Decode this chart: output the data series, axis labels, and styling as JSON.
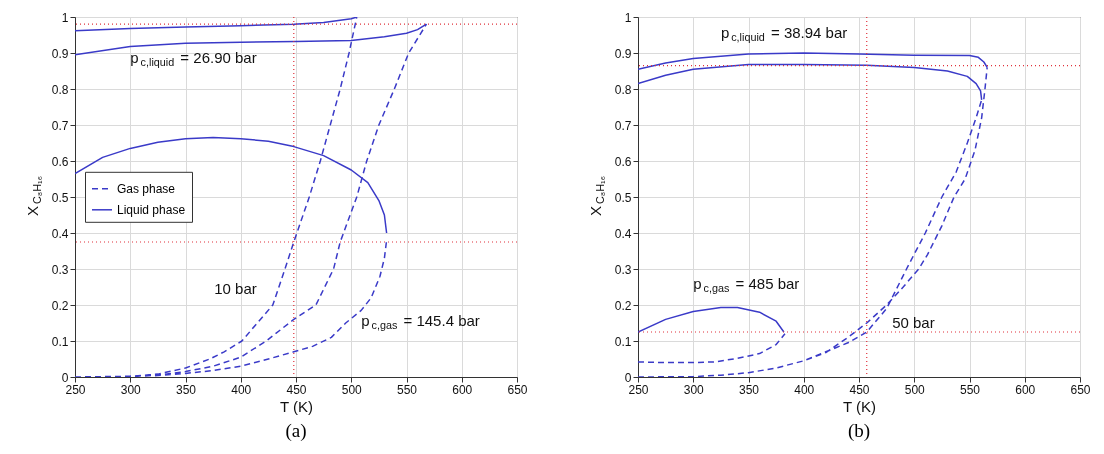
{
  "chart_data": [
    {
      "type": "line",
      "title": "(a)",
      "xlabel": "T (K)",
      "ylabel": "X$_{C₈H₁₆}$",
      "xlim": [
        250,
        650
      ],
      "xticks": [
        250,
        300,
        350,
        400,
        450,
        500,
        550,
        600,
        650
      ],
      "ylim": [
        0,
        1
      ],
      "yticks": [
        0,
        0.1,
        0.2,
        0.3,
        0.4,
        0.5,
        0.6,
        0.7,
        0.8,
        0.9,
        1
      ],
      "grid": true,
      "legend": "left",
      "series": [
        {
          "name": "Gas phase",
          "color": "#3a3ac8",
          "line_style": "dashed",
          "x": [
            250,
            300,
            325,
            350,
            372,
            385,
            401,
            415,
            429,
            440,
            448,
            462,
            472,
            481,
            490,
            498,
            505,
            null,
            250,
            300,
            325,
            350,
            375,
            400,
            423,
            448,
            468,
            484,
            490,
            505,
            514,
            525,
            539,
            552,
            568,
            null,
            250,
            300,
            325,
            350,
            375,
            400,
            425,
            448,
            465,
            482,
            495,
            509,
            518,
            526,
            530,
            532
          ],
          "values": [
            0,
            0.002,
            0.008,
            0.025,
            0.05,
            0.07,
            0.1,
            0.15,
            0.2,
            0.3,
            0.375,
            0.5,
            0.6,
            0.7,
            0.8,
            0.9,
            1.0,
            null,
            0,
            0.001,
            0.005,
            0.015,
            0.03,
            0.055,
            0.1,
            0.16,
            0.2,
            0.3,
            0.375,
            0.5,
            0.6,
            0.7,
            0.8,
            0.9,
            0.98,
            null,
            0,
            0.001,
            0.004,
            0.01,
            0.018,
            0.03,
            0.05,
            0.07,
            0.085,
            0.11,
            0.15,
            0.185,
            0.22,
            0.28,
            0.33,
            0.38
          ]
        },
        {
          "name": "Liquid phase",
          "color": "#3a3ac8",
          "line_style": "solid",
          "x": [
            250,
            300,
            350,
            400,
            448,
            475,
            500,
            505,
            null,
            250,
            300,
            350,
            400,
            450,
            500,
            530,
            550,
            560,
            568,
            null,
            250,
            275,
            300,
            325,
            350,
            375,
            400,
            425,
            448,
            475,
            500,
            515,
            525,
            530,
            532
          ],
          "values": [
            0.962,
            0.968,
            0.972,
            0.976,
            0.98,
            0.985,
            0.995,
            1.0,
            null,
            0.895,
            0.918,
            0.927,
            0.93,
            0.932,
            0.935,
            0.945,
            0.955,
            0.965,
            0.98,
            null,
            0.565,
            0.61,
            0.635,
            0.652,
            0.662,
            0.665,
            0.662,
            0.655,
            0.64,
            0.615,
            0.575,
            0.54,
            0.49,
            0.45,
            0.4
          ]
        }
      ],
      "ref_lines": [
        {
          "axis": "x",
          "value": 448,
          "color": "#e0303a",
          "line_style": "dotted"
        },
        {
          "axis": "y",
          "value": 0.98,
          "color": "#e0303a",
          "line_style": "dotted"
        },
        {
          "axis": "y",
          "value": 0.375,
          "color": "#e0303a",
          "line_style": "dotted"
        }
      ],
      "annotations": [
        "p$_{c,liquid}$ = 26.90 bar",
        "10 bar",
        "p$_{c,gas}$ = 145.4 bar"
      ]
    },
    {
      "type": "line",
      "title": "(b)",
      "xlabel": "T (K)",
      "ylabel": "X$_{C₈H₁₆}$",
      "xlim": [
        250,
        650
      ],
      "xticks": [
        250,
        300,
        350,
        400,
        450,
        500,
        550,
        600,
        650
      ],
      "ylim": [
        0,
        1
      ],
      "yticks": [
        0,
        0.1,
        0.2,
        0.3,
        0.4,
        0.5,
        0.6,
        0.7,
        0.8,
        0.9,
        1
      ],
      "grid": true,
      "legend": "left",
      "series": [
        {
          "name": "Gas phase",
          "color": "#3a3ac8",
          "line_style": "dashed",
          "x": [
            250,
            275,
            300,
            320,
            340,
            360,
            375,
            383,
            null,
            250,
            300,
            325,
            350,
            375,
            400,
            420,
            440,
            457,
            475,
            493,
            510,
            525,
            538,
            548,
            556,
            561,
            null,
            250,
            300,
            325,
            350,
            375,
            400,
            420,
            440,
            457,
            475,
            490,
            504,
            512,
            525,
            536,
            546,
            555,
            561,
            564,
            566
          ],
          "values": [
            0.042,
            0.04,
            0.04,
            0.042,
            0.052,
            0.065,
            0.09,
            0.12,
            null,
            0,
            0.001,
            0.005,
            0.012,
            0.025,
            0.045,
            0.07,
            0.095,
            0.125,
            0.19,
            0.3,
            0.4,
            0.5,
            0.57,
            0.65,
            0.72,
            0.77,
            null,
            0,
            0.001,
            0.005,
            0.012,
            0.025,
            0.045,
            0.068,
            0.11,
            0.15,
            0.2,
            0.25,
            0.3,
            0.34,
            0.42,
            0.5,
            0.55,
            0.63,
            0.72,
            0.8,
            0.86
          ]
        },
        {
          "name": "Liquid phase",
          "color": "#3a3ac8",
          "line_style": "solid",
          "x": [
            250,
            275,
            300,
            325,
            340,
            360,
            375,
            382,
            null,
            250,
            275,
            300,
            350,
            400,
            450,
            500,
            550,
            558,
            563,
            566,
            null,
            250,
            275,
            300,
            350,
            400,
            457,
            500,
            530,
            548,
            556,
            560,
            561
          ],
          "values": [
            0.125,
            0.16,
            0.182,
            0.193,
            0.193,
            0.18,
            0.155,
            0.125,
            null,
            0.855,
            0.872,
            0.885,
            0.897,
            0.9,
            0.897,
            0.894,
            0.893,
            0.888,
            0.875,
            0.86,
            null,
            0.815,
            0.838,
            0.855,
            0.868,
            0.868,
            0.866,
            0.86,
            0.85,
            0.835,
            0.815,
            0.795,
            0.77
          ]
        }
      ],
      "ref_lines": [
        {
          "axis": "x",
          "value": 457,
          "color": "#e0303a",
          "line_style": "dotted"
        },
        {
          "axis": "y",
          "value": 0.865,
          "color": "#e0303a",
          "line_style": "dotted"
        },
        {
          "axis": "y",
          "value": 0.125,
          "color": "#e0303a",
          "line_style": "dotted"
        }
      ],
      "annotations": [
        "p$_{c,liquid}$ = 38.94 bar",
        "p$_{c,gas}$ = 485 bar",
        "50 bar"
      ]
    }
  ]
}
